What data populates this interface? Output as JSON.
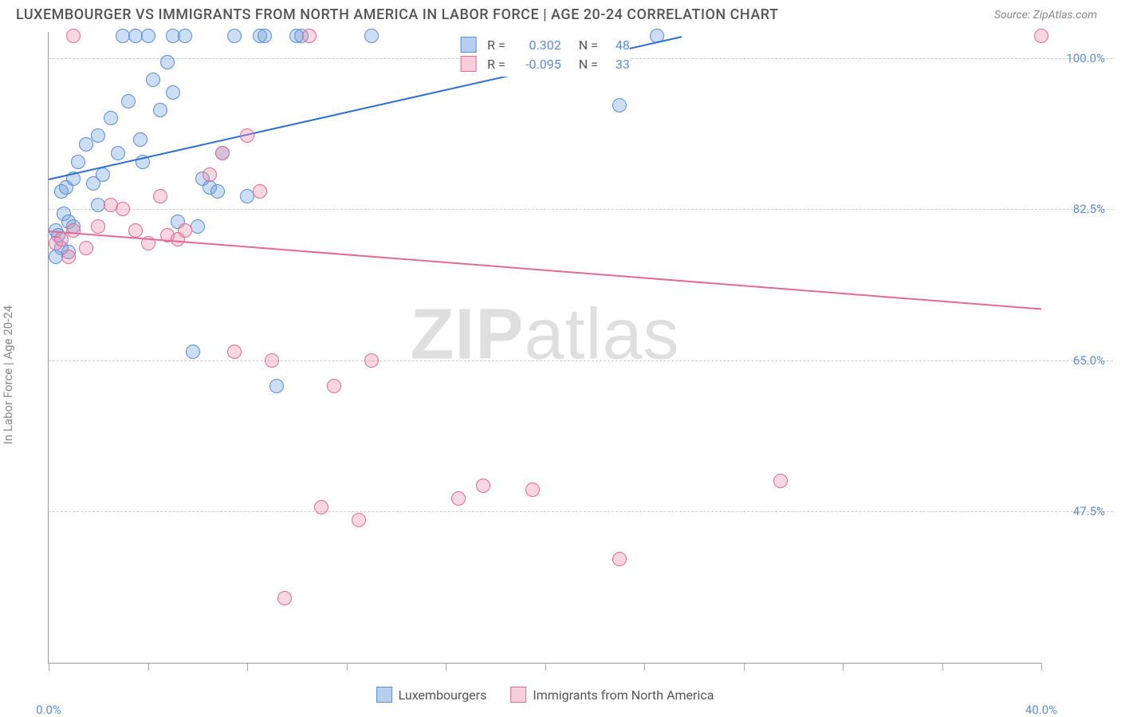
{
  "header": {
    "title": "LUXEMBOURGER VS IMMIGRANTS FROM NORTH AMERICA IN LABOR FORCE | AGE 20-24 CORRELATION CHART",
    "source": "Source: ZipAtlas.com"
  },
  "axes": {
    "y_label": "In Labor Force | Age 20-24",
    "x_min": 0.0,
    "x_max": 40.0,
    "y_min": 30.0,
    "y_max": 103.0,
    "y_ticks": [
      47.5,
      65.0,
      82.5,
      100.0
    ],
    "y_tick_labels": [
      "47.5%",
      "65.0%",
      "82.5%",
      "100.0%"
    ],
    "x_ticks_minor": [
      0,
      4,
      8,
      12,
      16,
      20,
      24,
      28,
      32,
      36,
      40
    ],
    "x_tick_left": "0.0%",
    "x_tick_right": "40.0%",
    "grid_color": "#cccccc",
    "label_color": "#5b8dd6"
  },
  "series": [
    {
      "name": "Luxembourgers",
      "fill": "rgba(110,160,220,0.35)",
      "stroke": "#5b8dd6",
      "line_color": "#2e6fd0",
      "R": "0.302",
      "N": "48",
      "trend_x1": 0.0,
      "trend_y1": 86.0,
      "trend_x2": 25.5,
      "trend_y2": 102.5,
      "marker_size": 18,
      "points": [
        [
          0.3,
          80.0
        ],
        [
          0.4,
          79.5
        ],
        [
          0.5,
          84.5
        ],
        [
          0.6,
          82.0
        ],
        [
          0.5,
          78.0
        ],
        [
          0.8,
          81.0
        ],
        [
          0.7,
          85.0
        ],
        [
          1.0,
          86.0
        ],
        [
          0.8,
          77.5
        ],
        [
          1.2,
          88.0
        ],
        [
          0.3,
          77.0
        ],
        [
          1.5,
          90.0
        ],
        [
          1.0,
          80.5
        ],
        [
          1.8,
          85.5
        ],
        [
          2.0,
          91.0
        ],
        [
          2.2,
          86.5
        ],
        [
          2.5,
          93.0
        ],
        [
          2.8,
          89.0
        ],
        [
          2.0,
          83.0
        ],
        [
          3.0,
          102.5
        ],
        [
          3.2,
          95.0
        ],
        [
          3.5,
          102.5
        ],
        [
          3.7,
          90.5
        ],
        [
          4.0,
          102.5
        ],
        [
          4.2,
          97.5
        ],
        [
          4.5,
          94.0
        ],
        [
          4.8,
          99.5
        ],
        [
          5.0,
          102.5
        ],
        [
          5.2,
          81.0
        ],
        [
          5.0,
          96.0
        ],
        [
          5.5,
          102.5
        ],
        [
          3.8,
          88.0
        ],
        [
          6.0,
          80.5
        ],
        [
          6.2,
          86.0
        ],
        [
          6.5,
          85.0
        ],
        [
          6.8,
          84.5
        ],
        [
          5.8,
          66.0
        ],
        [
          7.0,
          89.0
        ],
        [
          7.5,
          102.5
        ],
        [
          8.0,
          84.0
        ],
        [
          8.5,
          102.5
        ],
        [
          8.7,
          102.5
        ],
        [
          9.2,
          62.0
        ],
        [
          10.0,
          102.5
        ],
        [
          10.2,
          102.5
        ],
        [
          13.0,
          102.5
        ],
        [
          23.0,
          94.5
        ],
        [
          24.5,
          102.5
        ]
      ]
    },
    {
      "name": "Immigrants from North America",
      "fill": "rgba(235,140,170,0.35)",
      "stroke": "#e26a93",
      "line_color": "#e26a93",
      "R": "-0.095",
      "N": "33",
      "trend_x1": 0.0,
      "trend_y1": 80.0,
      "trend_x2": 40.0,
      "trend_y2": 71.0,
      "marker_size": 18,
      "points": [
        [
          0.3,
          78.5
        ],
        [
          0.5,
          79.0
        ],
        [
          0.8,
          77.0
        ],
        [
          1.0,
          80.0
        ],
        [
          1.5,
          78.0
        ],
        [
          1.0,
          102.5
        ],
        [
          2.0,
          80.5
        ],
        [
          2.5,
          83.0
        ],
        [
          3.0,
          82.5
        ],
        [
          3.5,
          80.0
        ],
        [
          4.0,
          78.5
        ],
        [
          4.5,
          84.0
        ],
        [
          4.8,
          79.5
        ],
        [
          5.2,
          79.0
        ],
        [
          5.5,
          80.0
        ],
        [
          6.5,
          86.5
        ],
        [
          7.0,
          89.0
        ],
        [
          7.5,
          66.0
        ],
        [
          8.0,
          91.0
        ],
        [
          8.5,
          84.5
        ],
        [
          9.0,
          65.0
        ],
        [
          9.5,
          37.5
        ],
        [
          10.5,
          102.5
        ],
        [
          11.0,
          48.0
        ],
        [
          11.5,
          62.0
        ],
        [
          12.5,
          46.5
        ],
        [
          13.0,
          65.0
        ],
        [
          16.5,
          49.0
        ],
        [
          17.5,
          50.5
        ],
        [
          19.5,
          50.0
        ],
        [
          23.0,
          42.0
        ],
        [
          29.5,
          51.0
        ],
        [
          40.0,
          102.5
        ]
      ]
    }
  ],
  "legend_bottom": {
    "items": [
      "Luxembourgers",
      "Immigrants from North America"
    ]
  },
  "watermark": {
    "zip": "ZIP",
    "atlas": "atlas"
  },
  "colors": {
    "blue_fill": "rgba(110,160,220,0.5)",
    "blue_stroke": "#5b8dd6",
    "pink_fill": "rgba(240,160,185,0.5)",
    "pink_stroke": "#e26a93"
  }
}
